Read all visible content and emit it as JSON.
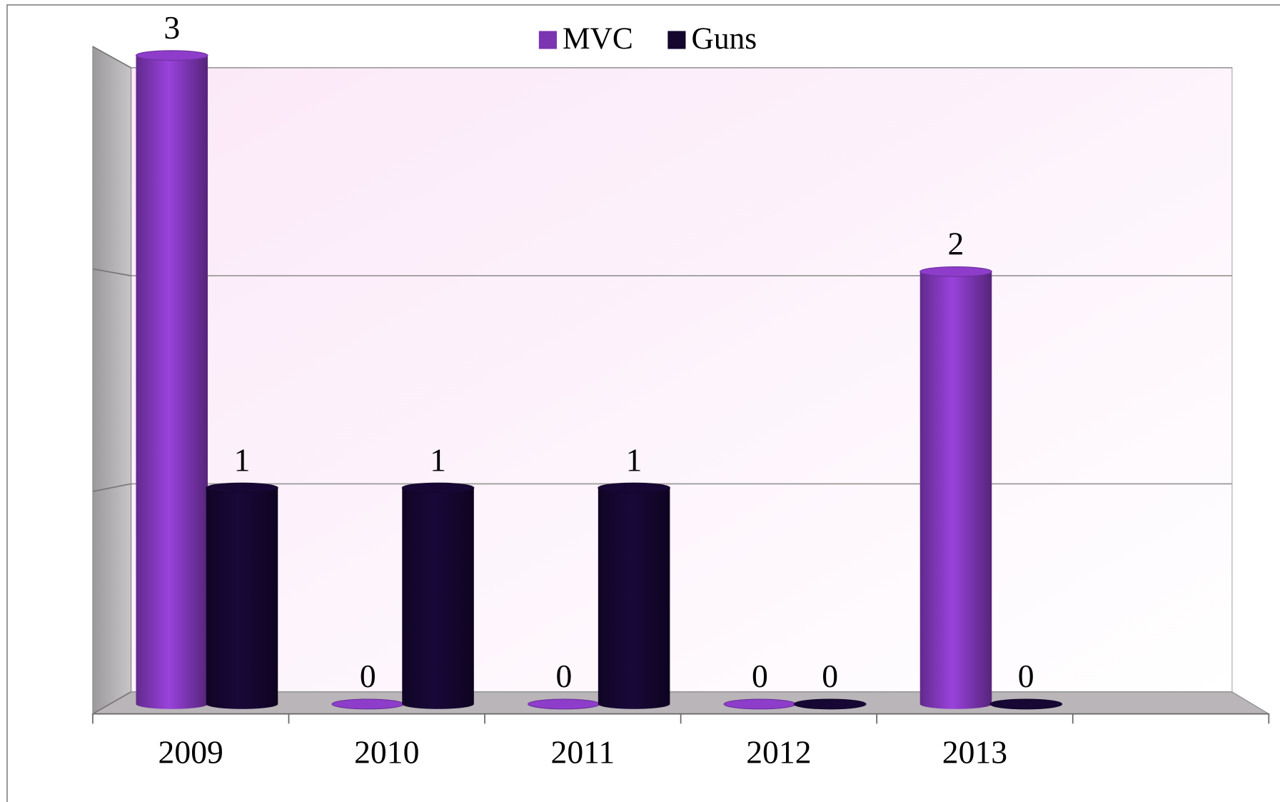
{
  "chart_data": {
    "type": "bar3d",
    "categories": [
      "2009",
      "2010",
      "2011",
      "2012",
      "2013",
      null
    ],
    "series": [
      {
        "name": "MVC",
        "color": "#7b35b0",
        "values": [
          3,
          0,
          0,
          0,
          2,
          null
        ]
      },
      {
        "name": "Guns",
        "color": "#14062e",
        "values": [
          1,
          1,
          1,
          0,
          0,
          null
        ]
      }
    ],
    "ylim": [
      0,
      3
    ],
    "yticks": [
      0,
      1,
      2,
      3
    ],
    "grid": true,
    "legend": "top"
  }
}
